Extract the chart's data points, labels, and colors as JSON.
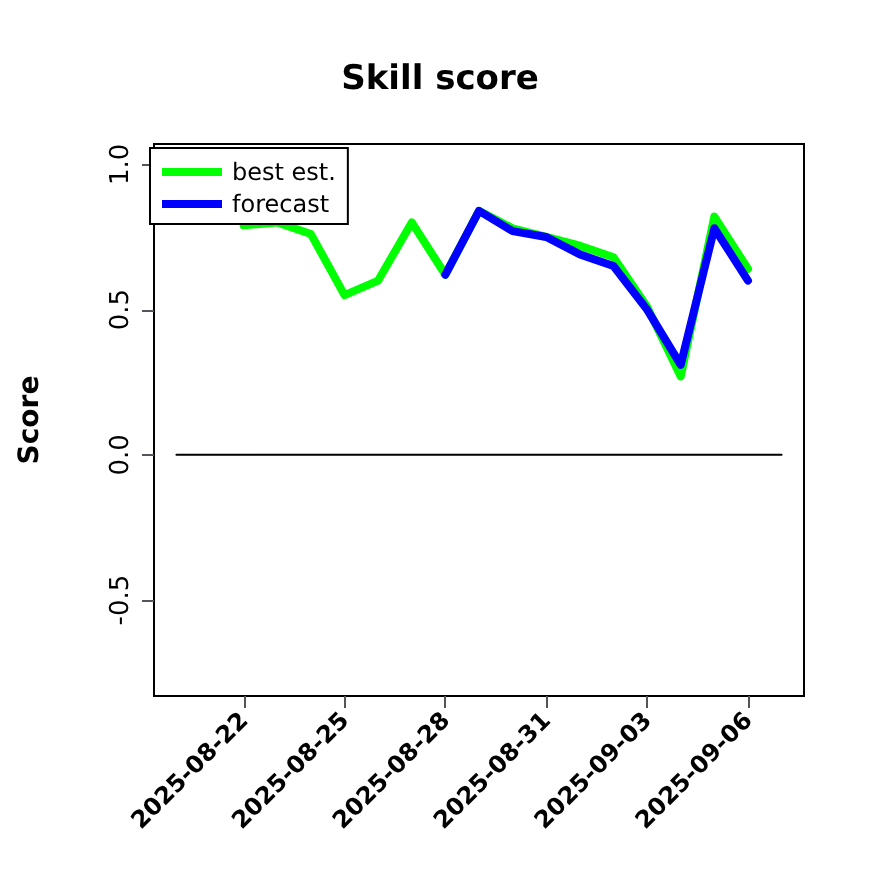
{
  "chart_data": {
    "type": "line",
    "title": "Skill score",
    "ylabel": "Score",
    "xlim": [
      "2025-08-19T08:00",
      "2025-09-07T16:00"
    ],
    "ylim": [
      -0.83,
      1.07
    ],
    "xticks": [
      "2025-08-22",
      "2025-08-25",
      "2025-08-28",
      "2025-08-31",
      "2025-09-03",
      "2025-09-06"
    ],
    "yticks": [
      -0.5,
      {
        "value": 0,
        "label": "0.0"
      },
      0.5,
      {
        "value": 1,
        "label": "1.0"
      }
    ],
    "series": [
      {
        "name": "best est.",
        "color": "#00ff00",
        "x": [
          "2025-08-22",
          "2025-08-23",
          "2025-08-24",
          "2025-08-25",
          "2025-08-26",
          "2025-08-27",
          "2025-08-28",
          "2025-08-29",
          "2025-08-30",
          "2025-08-31",
          "2025-09-01",
          "2025-09-02",
          "2025-09-03",
          "2025-09-04",
          "2025-09-05",
          "2025-09-06"
        ],
        "values": [
          0.79,
          0.8,
          0.76,
          0.55,
          0.6,
          0.8,
          0.62,
          0.84,
          0.78,
          0.75,
          0.72,
          0.68,
          0.51,
          0.27,
          0.82,
          0.64
        ]
      },
      {
        "name": "forecast",
        "color": "#0000ff",
        "x": [
          "2025-08-28",
          "2025-08-29",
          "2025-08-30",
          "2025-08-31",
          "2025-09-01",
          "2025-09-02",
          "2025-09-03",
          "2025-09-04",
          "2025-09-05",
          "2025-09-06"
        ],
        "values": [
          0.62,
          0.84,
          0.77,
          0.75,
          0.69,
          0.65,
          0.5,
          0.31,
          0.78,
          0.6
        ]
      },
      {
        "type": "line",
        "color": "#000000",
        "x": [
          "2025-08-20",
          "2025-09-07"
        ],
        "values": [
          0,
          0
        ]
      }
    ],
    "legend": "top left",
    "grid": false,
    "marker": "none",
    "line_style": "solid"
  }
}
